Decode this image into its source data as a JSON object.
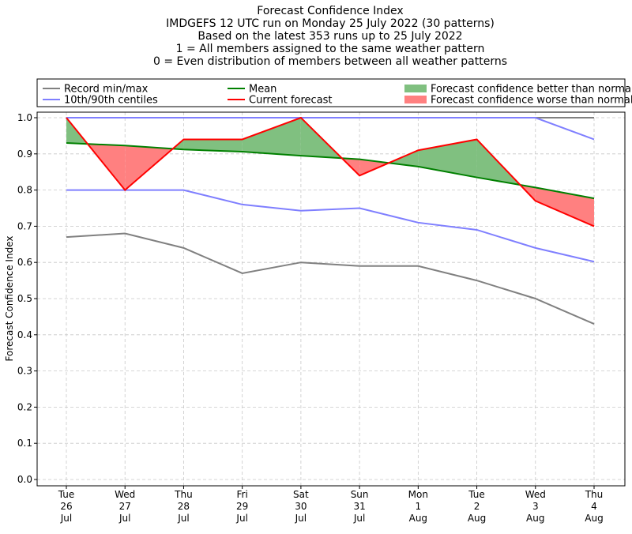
{
  "title_lines": [
    "Forecast Confidence Index",
    "IMDGEFS 12 UTC run on Monday 25 July 2022 (30 patterns)",
    "Based on the latest 353 runs up to 25 July 2022",
    "1 = All members assigned to the same weather pattern",
    "0 = Even distribution of members between all weather patterns"
  ],
  "chart_data": {
    "type": "line",
    "ylabel": "Forecast Confidence Index",
    "ylim": [
      0,
      1
    ],
    "yticks": [
      0.0,
      0.1,
      0.2,
      0.3,
      0.4,
      0.5,
      0.6,
      0.7,
      0.8,
      0.9,
      1.0
    ],
    "ytick_labels": [
      "0.0",
      "0.1",
      "0.2",
      "0.3",
      "0.4",
      "0.5",
      "0.6",
      "0.7",
      "0.8",
      "0.9",
      "1.0"
    ],
    "grid": true,
    "legend_position": "top, above plot",
    "categories": [
      [
        "Tue",
        "26",
        "Jul"
      ],
      [
        "Wed",
        "27",
        "Jul"
      ],
      [
        "Thu",
        "28",
        "Jul"
      ],
      [
        "Fri",
        "29",
        "Jul"
      ],
      [
        "Sat",
        "30",
        "Jul"
      ],
      [
        "Sun",
        "31",
        "Jul"
      ],
      [
        "Mon",
        "1",
        "Aug"
      ],
      [
        "Tue",
        "2",
        "Aug"
      ],
      [
        "Wed",
        "3",
        "Aug"
      ],
      [
        "Thu",
        "4",
        "Aug"
      ]
    ],
    "series": [
      {
        "key": "record_max",
        "values": [
          1.0,
          1.0,
          1.0,
          1.0,
          1.0,
          1.0,
          1.0,
          1.0,
          1.0,
          1.0
        ],
        "color": "#808080"
      },
      {
        "key": "record_min",
        "values": [
          0.67,
          0.68,
          0.64,
          0.57,
          0.6,
          0.59,
          0.59,
          0.55,
          0.5,
          0.43
        ],
        "color": "#808080"
      },
      {
        "key": "p90",
        "values": [
          1.0,
          1.0,
          1.0,
          1.0,
          1.0,
          1.0,
          1.0,
          1.0,
          1.0,
          0.94
        ],
        "color": "#7f7fff"
      },
      {
        "key": "p10",
        "values": [
          0.8,
          0.8,
          0.8,
          0.76,
          0.743,
          0.75,
          0.71,
          0.69,
          0.64,
          0.602
        ],
        "color": "#7f7fff"
      },
      {
        "key": "mean",
        "values": [
          0.93,
          0.923,
          0.912,
          0.906,
          0.895,
          0.885,
          0.865,
          0.835,
          0.807,
          0.777
        ],
        "color": "#008000"
      },
      {
        "key": "current",
        "values": [
          1.0,
          0.8,
          0.94,
          0.94,
          1.0,
          0.84,
          0.91,
          0.94,
          0.77,
          0.7
        ],
        "color": "#ff0000"
      }
    ],
    "legend": [
      {
        "label": "Record min/max",
        "kind": "line",
        "color": "#808080"
      },
      {
        "label": "10th/90th centiles",
        "kind": "line",
        "color": "#7f7fff"
      },
      {
        "label": "Mean",
        "kind": "line",
        "color": "#008000"
      },
      {
        "label": "Current forecast",
        "kind": "line",
        "color": "#ff0000"
      },
      {
        "label": "Forecast confidence better than normal",
        "kind": "patch",
        "color": "#80c080"
      },
      {
        "label": "Forecast confidence worse than normal",
        "kind": "patch",
        "color": "#ff8080"
      }
    ],
    "colors": {
      "better_fill": "#80c080",
      "worse_fill": "#ff8080",
      "grid": "#c8c8c8"
    }
  }
}
